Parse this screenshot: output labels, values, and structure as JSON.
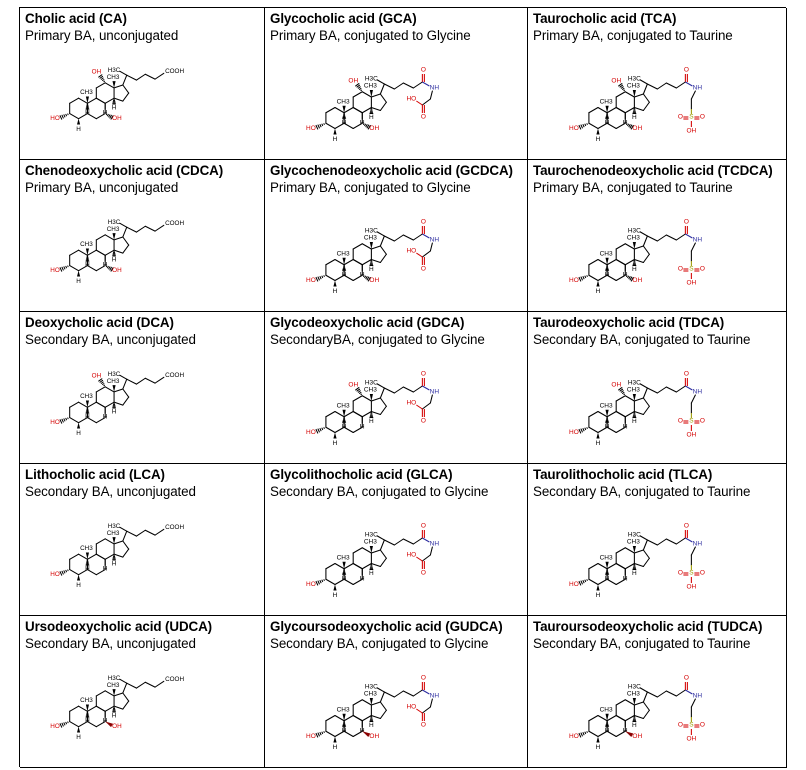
{
  "cells": [
    {
      "name": "Cholic acid (CA)",
      "desc": "Primary BA, unconjugated",
      "conj": "none",
      "oh12": true,
      "oh7": "alpha"
    },
    {
      "name": "Glycocholic acid (GCA)",
      "desc": "Primary BA, conjugated to Glycine",
      "conj": "glycine",
      "oh12": true,
      "oh7": "alpha"
    },
    {
      "name": "Taurocholic acid (TCA)",
      "desc": "Primary BA, conjugated to Taurine",
      "conj": "taurine",
      "oh12": true,
      "oh7": "alpha"
    },
    {
      "name": "Chenodeoxycholic acid (CDCA)",
      "desc": "Primary BA, unconjugated",
      "conj": "none",
      "oh12": false,
      "oh7": "alpha"
    },
    {
      "name": "Glycochenodeoxycholic acid (GCDCA)",
      "desc": "Primary BA, conjugated to Glycine",
      "conj": "glycine",
      "oh12": false,
      "oh7": "alpha"
    },
    {
      "name": "Taurochenodeoxycholic acid (TCDCA)",
      "desc": "Primary BA, conjugated to Taurine",
      "conj": "taurine",
      "oh12": false,
      "oh7": "alpha"
    },
    {
      "name": "Deoxycholic acid (DCA)",
      "desc": "Secondary BA, unconjugated",
      "conj": "none",
      "oh12": true,
      "oh7": "none"
    },
    {
      "name": "Glycodeoxycholic acid (GDCA)",
      "desc": "SecondaryBA, conjugated to Glycine",
      "conj": "glycine",
      "oh12": true,
      "oh7": "none"
    },
    {
      "name": "Taurodeoxycholic acid (TDCA)",
      "desc": "Secondary BA, conjugated to Taurine",
      "conj": "taurine",
      "oh12": true,
      "oh7": "none"
    },
    {
      "name": "Lithocholic acid (LCA)",
      "desc": "Secondary BA, unconjugated",
      "conj": "none",
      "oh12": false,
      "oh7": "none"
    },
    {
      "name": "Glycolithocholic acid (GLCA)",
      "desc": "Secondary BA, conjugated to Glycine",
      "conj": "glycine",
      "oh12": false,
      "oh7": "none"
    },
    {
      "name": "Taurolithocholic acid (TLCA)",
      "desc": "Secondary BA, conjugated to Taurine",
      "conj": "taurine",
      "oh12": false,
      "oh7": "none"
    },
    {
      "name": "Ursodeoxycholic acid (UDCA)",
      "desc": "Secondary BA, unconjugated",
      "conj": "none",
      "oh12": false,
      "oh7": "beta"
    },
    {
      "name": "Glycoursodeoxycholic acid (GUDCA)",
      "desc": "Secondary BA, conjugated to Glycine",
      "conj": "glycine",
      "oh12": false,
      "oh7": "beta"
    },
    {
      "name": "Tauroursodeoxycholic acid (TUDCA)",
      "desc": "Secondary BA, conjugated to Taurine",
      "conj": "taurine",
      "oh12": false,
      "oh7": "beta"
    }
  ],
  "atom_labels": {
    "hydroxyl": "OH",
    "hydroxyl_left": "HO",
    "hydrogen": "H",
    "methyl": "CH3",
    "carboxyl": "COOH",
    "carboxyl_left": "HO",
    "amide_n": "NH",
    "oxygen": "O",
    "sulfur": "S",
    "methyl21": "H3C"
  },
  "colors": {
    "oxygen": "#d40000",
    "nitrogen": "#2a2a9e",
    "sulfur": "#9a9a00",
    "bond": "#000000"
  }
}
